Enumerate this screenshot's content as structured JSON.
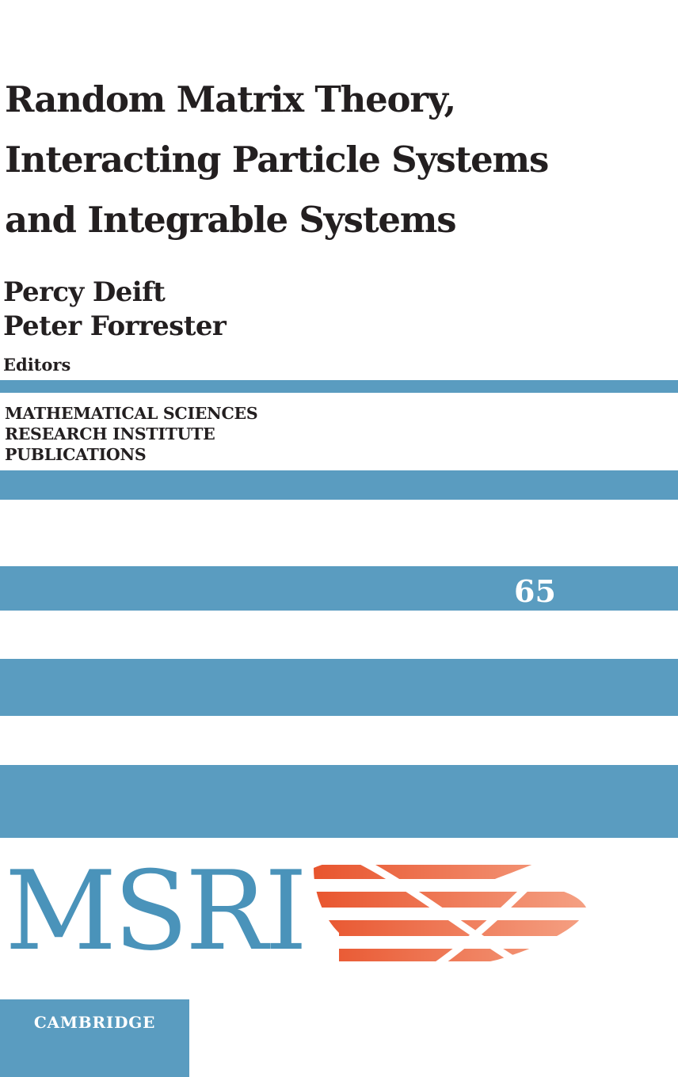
{
  "book": {
    "title_lines": [
      "Random Matrix Theory,",
      "Interacting Particle Systems",
      "and Integrable Systems"
    ],
    "editors": [
      "Percy Deift",
      "Peter Forrester"
    ],
    "editors_label": "Editors",
    "series_lines": [
      "MATHEMATICAL SCIENCES",
      "RESEARCH INSTITUTE",
      "PUBLICATIONS"
    ],
    "volume": "65"
  },
  "logo": {
    "text": "MSRI",
    "mark": "msri-stripes-logo-icon"
  },
  "publisher": {
    "name": "CAMBRIDGE"
  },
  "colors": {
    "band": "#5a9cc0",
    "logo_text": "#4a93ba",
    "logo_mark_dark": "#e8532c",
    "logo_mark_light": "#f39a7a",
    "text": "#231f20"
  }
}
